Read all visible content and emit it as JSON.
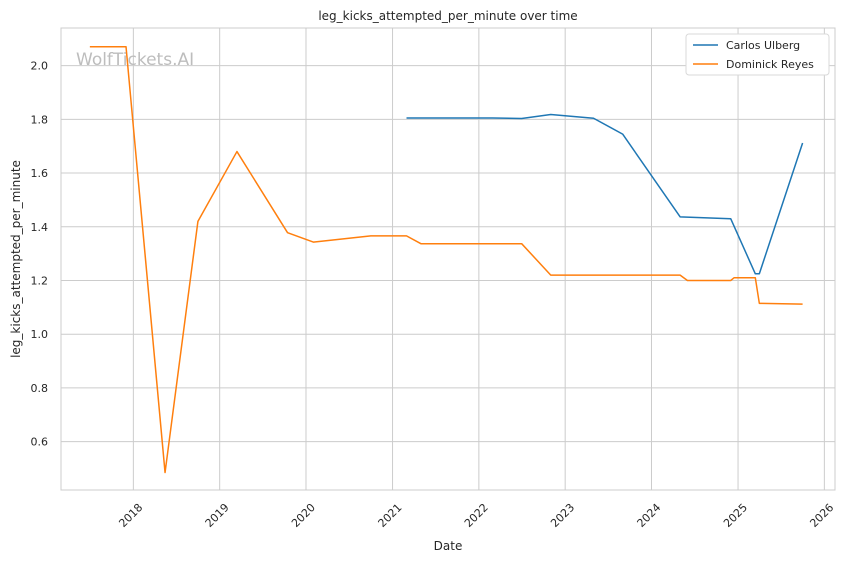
{
  "watermark": "WolfTickets.AI",
  "chart_data": {
    "type": "line",
    "title": "leg_kicks_attempted_per_minute over time",
    "xlabel": "Date",
    "ylabel": "leg_kicks_attempted_per_minute",
    "xlim": [
      "2017-03-01",
      "2026-02-15"
    ],
    "ylim": [
      0.42,
      2.14
    ],
    "x_ticks": [
      "2018",
      "2019",
      "2020",
      "2021",
      "2022",
      "2023",
      "2024",
      "2025",
      "2026"
    ],
    "y_ticks": [
      "0.6",
      "0.8",
      "1.0",
      "1.2",
      "1.4",
      "1.6",
      "1.8",
      "2.0"
    ],
    "grid": true,
    "legend_position": "top-right",
    "series": [
      {
        "name": "Carlos Ulberg",
        "color": "#1f77b4",
        "points": [
          [
            "2021-03-01",
            1.805
          ],
          [
            "2022-03-01",
            1.805
          ],
          [
            "2022-07-01",
            1.803
          ],
          [
            "2022-11-01",
            1.818
          ],
          [
            "2023-05-01",
            1.804
          ],
          [
            "2023-09-01",
            1.745
          ],
          [
            "2024-05-01",
            1.437
          ],
          [
            "2024-12-01",
            1.43
          ],
          [
            "2025-03-15",
            1.225
          ],
          [
            "2025-04-01",
            1.225
          ],
          [
            "2025-10-01",
            1.712
          ]
        ]
      },
      {
        "name": "Dominick Reyes",
        "color": "#ff7f0e",
        "points": [
          [
            "2017-07-01",
            2.07
          ],
          [
            "2017-12-01",
            2.07
          ],
          [
            "2018-05-15",
            0.485
          ],
          [
            "2018-10-01",
            1.42
          ],
          [
            "2019-03-15",
            1.68
          ],
          [
            "2019-10-15",
            1.378
          ],
          [
            "2020-02-01",
            1.343
          ],
          [
            "2020-10-01",
            1.366
          ],
          [
            "2021-03-01",
            1.366
          ],
          [
            "2021-05-01",
            1.337
          ],
          [
            "2022-07-01",
            1.337
          ],
          [
            "2022-11-01",
            1.22
          ],
          [
            "2024-05-01",
            1.22
          ],
          [
            "2024-06-01",
            1.2
          ],
          [
            "2024-12-01",
            1.2
          ],
          [
            "2024-12-15",
            1.21
          ],
          [
            "2025-03-15",
            1.21
          ],
          [
            "2025-04-01",
            1.115
          ],
          [
            "2025-10-01",
            1.112
          ]
        ]
      }
    ]
  }
}
